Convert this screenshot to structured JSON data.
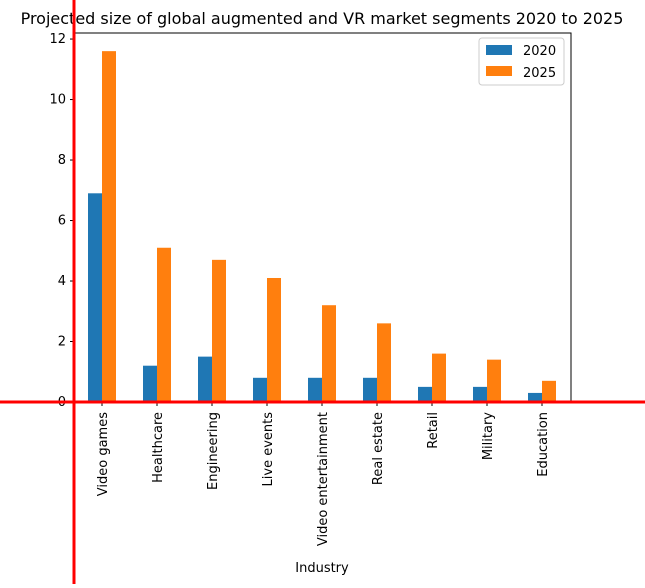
{
  "chart_data": {
    "type": "bar",
    "title": "Projected size of global augmented and VR market segments 2020 to 2025",
    "xlabel": "Industry",
    "ylabel": "",
    "categories": [
      "Video games",
      "Healthcare",
      "Engineering",
      "Live events",
      "Video entertainment",
      "Real estate",
      "Retail",
      "Military",
      "Education"
    ],
    "series": [
      {
        "name": "2020",
        "color": "#1f77b4",
        "values": [
          6.9,
          1.2,
          1.5,
          0.8,
          0.8,
          0.8,
          0.5,
          0.5,
          0.3
        ]
      },
      {
        "name": "2025",
        "color": "#ff7f0e",
        "values": [
          11.6,
          5.1,
          4.7,
          4.1,
          3.2,
          2.6,
          1.6,
          1.4,
          0.7
        ]
      }
    ],
    "yticks": [
      "0",
      "2",
      "4",
      "6",
      "8",
      "10",
      "12"
    ],
    "ylim": [
      0,
      12.2
    ],
    "legend": "top-right",
    "grid": false
  },
  "overlay": {
    "color": "#ff0000"
  }
}
